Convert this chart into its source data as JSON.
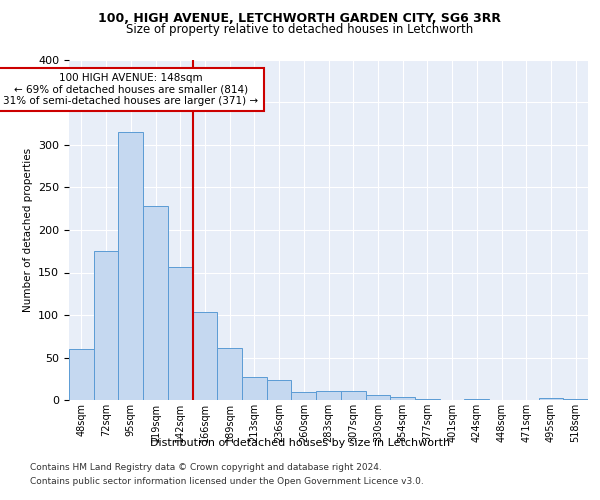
{
  "title1": "100, HIGH AVENUE, LETCHWORTH GARDEN CITY, SG6 3RR",
  "title2": "Size of property relative to detached houses in Letchworth",
  "xlabel": "Distribution of detached houses by size in Letchworth",
  "ylabel": "Number of detached properties",
  "categories": [
    "48sqm",
    "72sqm",
    "95sqm",
    "119sqm",
    "142sqm",
    "166sqm",
    "189sqm",
    "213sqm",
    "236sqm",
    "260sqm",
    "283sqm",
    "307sqm",
    "330sqm",
    "354sqm",
    "377sqm",
    "401sqm",
    "424sqm",
    "448sqm",
    "471sqm",
    "495sqm",
    "518sqm"
  ],
  "values": [
    60,
    175,
    315,
    228,
    157,
    103,
    61,
    27,
    23,
    9,
    11,
    11,
    6,
    4,
    1,
    0,
    1,
    0,
    0,
    2,
    1
  ],
  "bar_color": "#c5d8f0",
  "bar_edge_color": "#5b9bd5",
  "vline_index": 4,
  "annotation_line1": "100 HIGH AVENUE: 148sqm",
  "annotation_line2": "← 69% of detached houses are smaller (814)",
  "annotation_line3": "31% of semi-detached houses are larger (371) →",
  "annotation_box_color": "#ffffff",
  "annotation_box_edge": "#cc0000",
  "vline_color": "#cc0000",
  "footer1": "Contains HM Land Registry data © Crown copyright and database right 2024.",
  "footer2": "Contains public sector information licensed under the Open Government Licence v3.0.",
  "ylim": [
    0,
    400
  ],
  "background_color": "#e8eef8"
}
